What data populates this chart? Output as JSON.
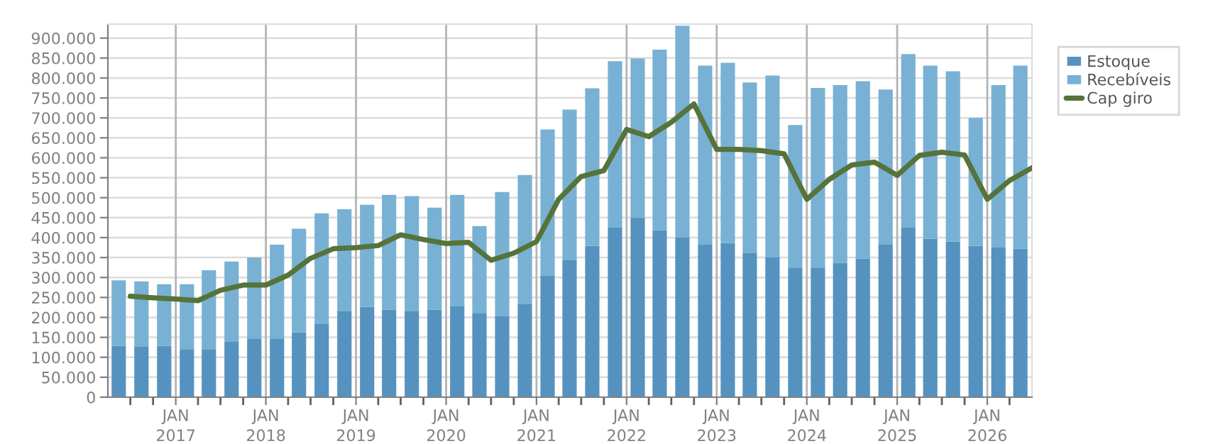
{
  "chart_data": {
    "type": "bar",
    "stacked": true,
    "x": [
      "2016-05-15",
      "2016-08-15",
      "2016-11-15",
      "2017-02-15",
      "2017-05-15",
      "2017-08-15",
      "2017-11-15",
      "2018-02-15",
      "2018-05-15",
      "2018-08-15",
      "2018-11-15",
      "2019-02-15",
      "2019-05-15",
      "2019-08-15",
      "2019-11-15",
      "2020-02-15",
      "2020-05-15",
      "2020-08-15",
      "2020-11-15",
      "2021-02-15",
      "2021-05-15",
      "2021-08-15",
      "2021-11-15",
      "2022-02-15",
      "2022-05-15",
      "2022-08-15",
      "2022-11-15",
      "2023-02-15",
      "2023-05-15",
      "2023-08-15",
      "2023-11-15",
      "2024-02-15",
      "2024-05-15",
      "2024-08-15",
      "2024-11-15",
      "2025-02-15",
      "2025-05-15",
      "2025-08-15",
      "2025-11-15",
      "2026-02-15",
      "2026-05-15"
    ],
    "series": [
      {
        "name": "Estoque",
        "color": "#5592bf",
        "values": [
          129000,
          126000,
          129000,
          119000,
          119000,
          140000,
          147000,
          147000,
          162000,
          183000,
          215000,
          226000,
          219000,
          215000,
          219000,
          229000,
          211000,
          204000,
          233000,
          304000,
          343000,
          379000,
          425000,
          450000,
          418000,
          400000,
          382000,
          386000,
          361000,
          350000,
          325000,
          325000,
          337000,
          347000,
          382000,
          425000,
          397000,
          390000,
          379000,
          375000,
          372000
        ]
      },
      {
        "name": "Recebíveis",
        "color": "#78b1d3",
        "values": [
          164000,
          164000,
          154000,
          164000,
          199000,
          200000,
          203000,
          235000,
          260000,
          278000,
          256000,
          256000,
          288000,
          289000,
          256000,
          278000,
          218000,
          310000,
          324000,
          367000,
          378000,
          395000,
          417000,
          399000,
          453000,
          531000,
          449000,
          452000,
          428000,
          456000,
          357000,
          450000,
          445000,
          445000,
          389000,
          435000,
          434000,
          427000,
          321000,
          407000,
          459000
        ]
      },
      {
        "name": "Cap giro",
        "type": "line",
        "color": "#56733a",
        "x": [
          "2016-07-01",
          "2016-10-01",
          "2017-01-01",
          "2017-04-01",
          "2017-07-01",
          "2017-10-01",
          "2018-01-01",
          "2018-04-01",
          "2018-07-01",
          "2018-10-01",
          "2019-01-01",
          "2019-04-01",
          "2019-07-01",
          "2019-10-01",
          "2020-01-01",
          "2020-04-01",
          "2020-07-01",
          "2020-10-01",
          "2021-01-01",
          "2021-04-01",
          "2021-07-01",
          "2021-10-01",
          "2022-01-01",
          "2022-04-01",
          "2022-07-01",
          "2022-10-01",
          "2023-01-01",
          "2023-04-01",
          "2023-07-01",
          "2023-10-01",
          "2024-01-01",
          "2024-04-01",
          "2024-07-01",
          "2024-10-01",
          "2025-01-01",
          "2025-04-01",
          "2025-07-01",
          "2025-10-01",
          "2026-01-01",
          "2026-04-01",
          "2026-07-01"
        ],
        "values": [
          253000,
          249000,
          246000,
          242000,
          268000,
          281000,
          281000,
          306000,
          348000,
          372000,
          375000,
          380000,
          407000,
          395000,
          385000,
          388000,
          343000,
          361000,
          390000,
          496000,
          553000,
          568000,
          671000,
          653000,
          689000,
          735000,
          621000,
          621000,
          618000,
          610000,
          496000,
          546000,
          582000,
          589000,
          556000,
          606000,
          614000,
          607000,
          496000,
          543000,
          575000
        ]
      }
    ],
    "xlim": [
      "2016-04-01",
      "2026-07-01"
    ],
    "xticks": [
      {
        "value": "2016-07-01",
        "label": null
      },
      {
        "value": "2016-10-01",
        "label": null
      },
      {
        "value": "2017-01-01",
        "label": "JAN\n2017"
      },
      {
        "value": "2017-04-01",
        "label": null
      },
      {
        "value": "2017-07-01",
        "label": null
      },
      {
        "value": "2017-10-01",
        "label": null
      },
      {
        "value": "2018-01-01",
        "label": "JAN\n2018"
      },
      {
        "value": "2018-04-01",
        "label": null
      },
      {
        "value": "2018-07-01",
        "label": null
      },
      {
        "value": "2018-10-01",
        "label": null
      },
      {
        "value": "2019-01-01",
        "label": "JAN\n2019"
      },
      {
        "value": "2019-04-01",
        "label": null
      },
      {
        "value": "2019-07-01",
        "label": null
      },
      {
        "value": "2019-10-01",
        "label": null
      },
      {
        "value": "2020-01-01",
        "label": "JAN\n2020"
      },
      {
        "value": "2020-04-01",
        "label": null
      },
      {
        "value": "2020-07-01",
        "label": null
      },
      {
        "value": "2020-10-01",
        "label": null
      },
      {
        "value": "2021-01-01",
        "label": "JAN\n2021"
      },
      {
        "value": "2021-04-01",
        "label": null
      },
      {
        "value": "2021-07-01",
        "label": null
      },
      {
        "value": "2021-10-01",
        "label": null
      },
      {
        "value": "2022-01-01",
        "label": "JAN\n2022"
      },
      {
        "value": "2022-04-01",
        "label": null
      },
      {
        "value": "2022-07-01",
        "label": null
      },
      {
        "value": "2022-10-01",
        "label": null
      },
      {
        "value": "2023-01-01",
        "label": "JAN\n2023"
      },
      {
        "value": "2023-04-01",
        "label": null
      },
      {
        "value": "2023-07-01",
        "label": null
      },
      {
        "value": "2023-10-01",
        "label": null
      },
      {
        "value": "2024-01-01",
        "label": "JAN\n2024"
      },
      {
        "value": "2024-04-01",
        "label": null
      },
      {
        "value": "2024-07-01",
        "label": null
      },
      {
        "value": "2024-10-01",
        "label": null
      },
      {
        "value": "2025-01-01",
        "label": "JAN\n2025"
      },
      {
        "value": "2025-04-01",
        "label": null
      },
      {
        "value": "2025-07-01",
        "label": null
      },
      {
        "value": "2025-10-01",
        "label": null
      },
      {
        "value": "2026-01-01",
        "label": "JAN\n2026"
      },
      {
        "value": "2026-04-01",
        "label": null
      }
    ],
    "ylim": [
      0,
      935000
    ],
    "yticks": [
      0,
      {
        "value": 50000,
        "label": "50.000"
      },
      {
        "value": 100000,
        "label": "100.000"
      },
      {
        "value": 150000,
        "label": "150.000"
      },
      {
        "value": 200000,
        "label": "200.000"
      },
      {
        "value": 250000,
        "label": "250.000"
      },
      {
        "value": 300000,
        "label": "300.000"
      },
      {
        "value": 350000,
        "label": "350.000"
      },
      {
        "value": 400000,
        "label": "400.000"
      },
      {
        "value": 450000,
        "label": "450.000"
      },
      {
        "value": 500000,
        "label": "500.000"
      },
      {
        "value": 550000,
        "label": "550.000"
      },
      {
        "value": 600000,
        "label": "600.000"
      },
      {
        "value": 650000,
        "label": "650.000"
      },
      {
        "value": 700000,
        "label": "700.000"
      },
      {
        "value": 750000,
        "label": "750.000"
      },
      {
        "value": 800000,
        "label": "800.000"
      },
      {
        "value": 850000,
        "label": "850.000"
      },
      {
        "value": 900000,
        "label": "900.000"
      }
    ],
    "grid": true,
    "legend": "top right",
    "marker": "none",
    "line_style": "solid"
  }
}
